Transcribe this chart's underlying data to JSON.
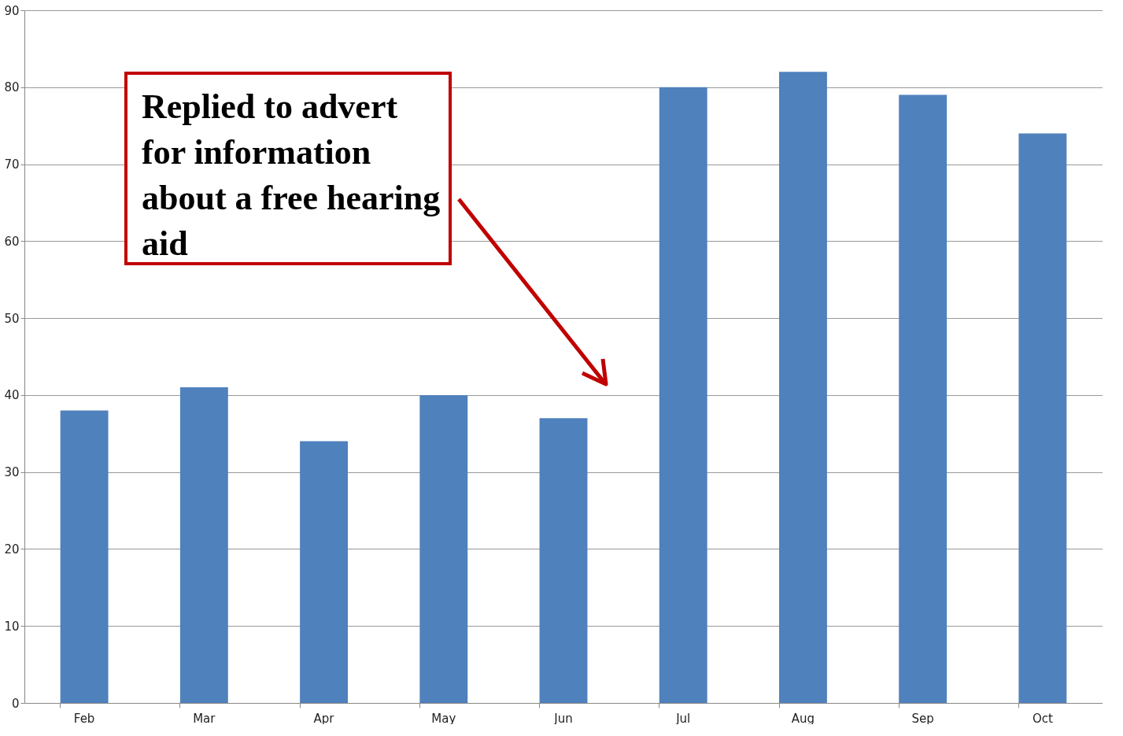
{
  "chart_data": {
    "type": "bar",
    "categories": [
      "Feb",
      "Mar",
      "Apr",
      "May",
      "Jun",
      "Jul",
      "Aug",
      "Sep",
      "Oct"
    ],
    "values": [
      38,
      41,
      34,
      40,
      37,
      80,
      82,
      79,
      74
    ],
    "color": "#4f81bd",
    "ylim": [
      0,
      90
    ],
    "yticks": [
      0,
      10,
      20,
      30,
      40,
      50,
      60,
      70,
      80,
      90
    ],
    "grid": "y",
    "annotations": [
      "Replied to advert for information about a free hearing aid"
    ]
  }
}
